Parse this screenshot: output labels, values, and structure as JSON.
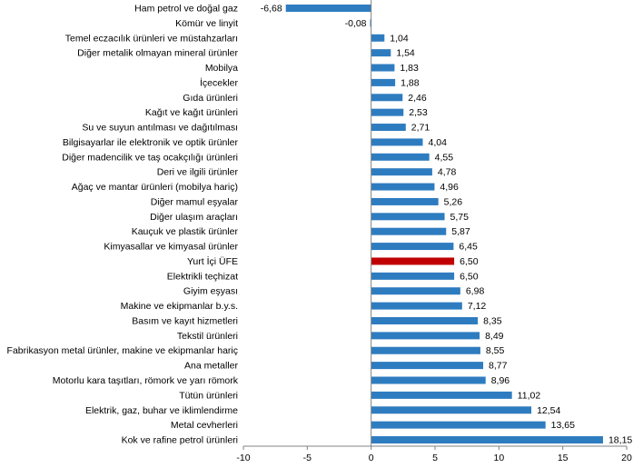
{
  "chart_data": {
    "type": "bar",
    "orientation": "horizontal",
    "categories": [
      "Ham petrol ve doğal gaz",
      "Kömür ve linyit",
      "Temel eczacılık ürünleri ve müstahzarları",
      "Diğer metalik olmayan mineral ürünler",
      "Mobilya",
      "İçecekler",
      "Gıda ürünleri",
      "Kağıt ve kağıt ürünleri",
      "Su ve suyun antılması ve dağıtılması",
      "Bilgisayarlar ile elektronik ve optik ürünler",
      "Diğer madencilik ve taş ocakçılığı ürünleri",
      "Deri ve ilgili ürünler",
      "Ağaç ve mantar ürünleri (mobilya hariç)",
      "Diğer mamul eşyalar",
      "Diğer ulaşım araçları",
      "Kauçuk ve plastik ürünler",
      "Kimyasallar ve kimyasal ürünler",
      "Yurt İçi ÜFE",
      "Elektrikli teçhizat",
      "Giyim eşyası",
      "Makine ve ekipmanlar b.y.s.",
      "Basım ve kayıt hizmetleri",
      "Tekstil ürünleri",
      "Fabrikasyon metal ürünler, makine ve ekipmanlar hariç",
      "Ana metaller",
      "Motorlu kara taşıtları, römork ve yarı römork",
      "Tütün ürünleri",
      "Elektrik, gaz, buhar ve iklimlendirme",
      "Metal cevherleri",
      "Kok ve rafine petrol ürünleri"
    ],
    "values": [
      -6.68,
      -0.08,
      1.04,
      1.54,
      1.83,
      1.88,
      2.46,
      2.53,
      2.71,
      4.04,
      4.55,
      4.78,
      4.96,
      5.26,
      5.75,
      5.87,
      6.45,
      6.5,
      6.5,
      6.98,
      7.12,
      8.35,
      8.49,
      8.55,
      8.77,
      8.96,
      11.02,
      12.54,
      13.65,
      18.15
    ],
    "value_labels": [
      "-6,68",
      "-0,08",
      "1,04",
      "1,54",
      "1,83",
      "1,88",
      "2,46",
      "2,53",
      "2,71",
      "4,04",
      "4,55",
      "4,78",
      "4,96",
      "5,26",
      "5,75",
      "5,87",
      "6,45",
      "6,50",
      "6,50",
      "6,98",
      "7,12",
      "8,35",
      "8,49",
      "8,55",
      "8,77",
      "8,96",
      "11,02",
      "12,54",
      "13,65",
      "18,15"
    ],
    "highlight_category": "Yurt İçi ÜFE",
    "xlim": [
      -10,
      20
    ],
    "x_ticks": [
      -10,
      -5,
      0,
      5,
      10,
      15,
      20
    ],
    "x_tick_labels": [
      "-10",
      "-5",
      "0",
      "5",
      "10",
      "15",
      "20"
    ],
    "grid": false,
    "colors": {
      "bar": "#2E7CC0",
      "highlight": "#C00000",
      "axis": "#808080"
    }
  }
}
